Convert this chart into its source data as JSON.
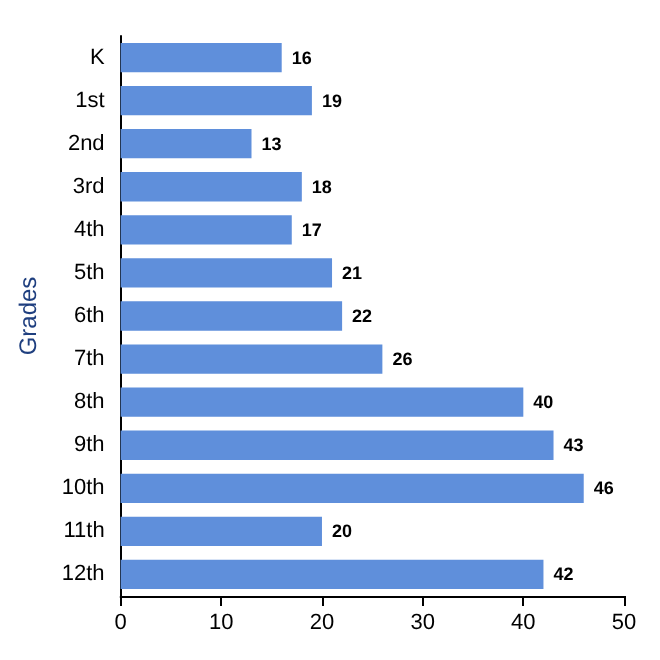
{
  "chart_data": {
    "type": "bar",
    "orientation": "horizontal",
    "ylabel": "Grades",
    "categories": [
      "K",
      "1st",
      "2nd",
      "3rd",
      "4th",
      "5th",
      "6th",
      "7th",
      "8th",
      "9th",
      "10th",
      "11th",
      "12th"
    ],
    "values": [
      16,
      19,
      13,
      18,
      17,
      21,
      22,
      26,
      40,
      43,
      46,
      20,
      42
    ],
    "color": "#5f8fdb",
    "xlim": [
      0,
      50
    ],
    "xticks": [
      0,
      10,
      20,
      30,
      40,
      50
    ],
    "data_labels": true
  }
}
